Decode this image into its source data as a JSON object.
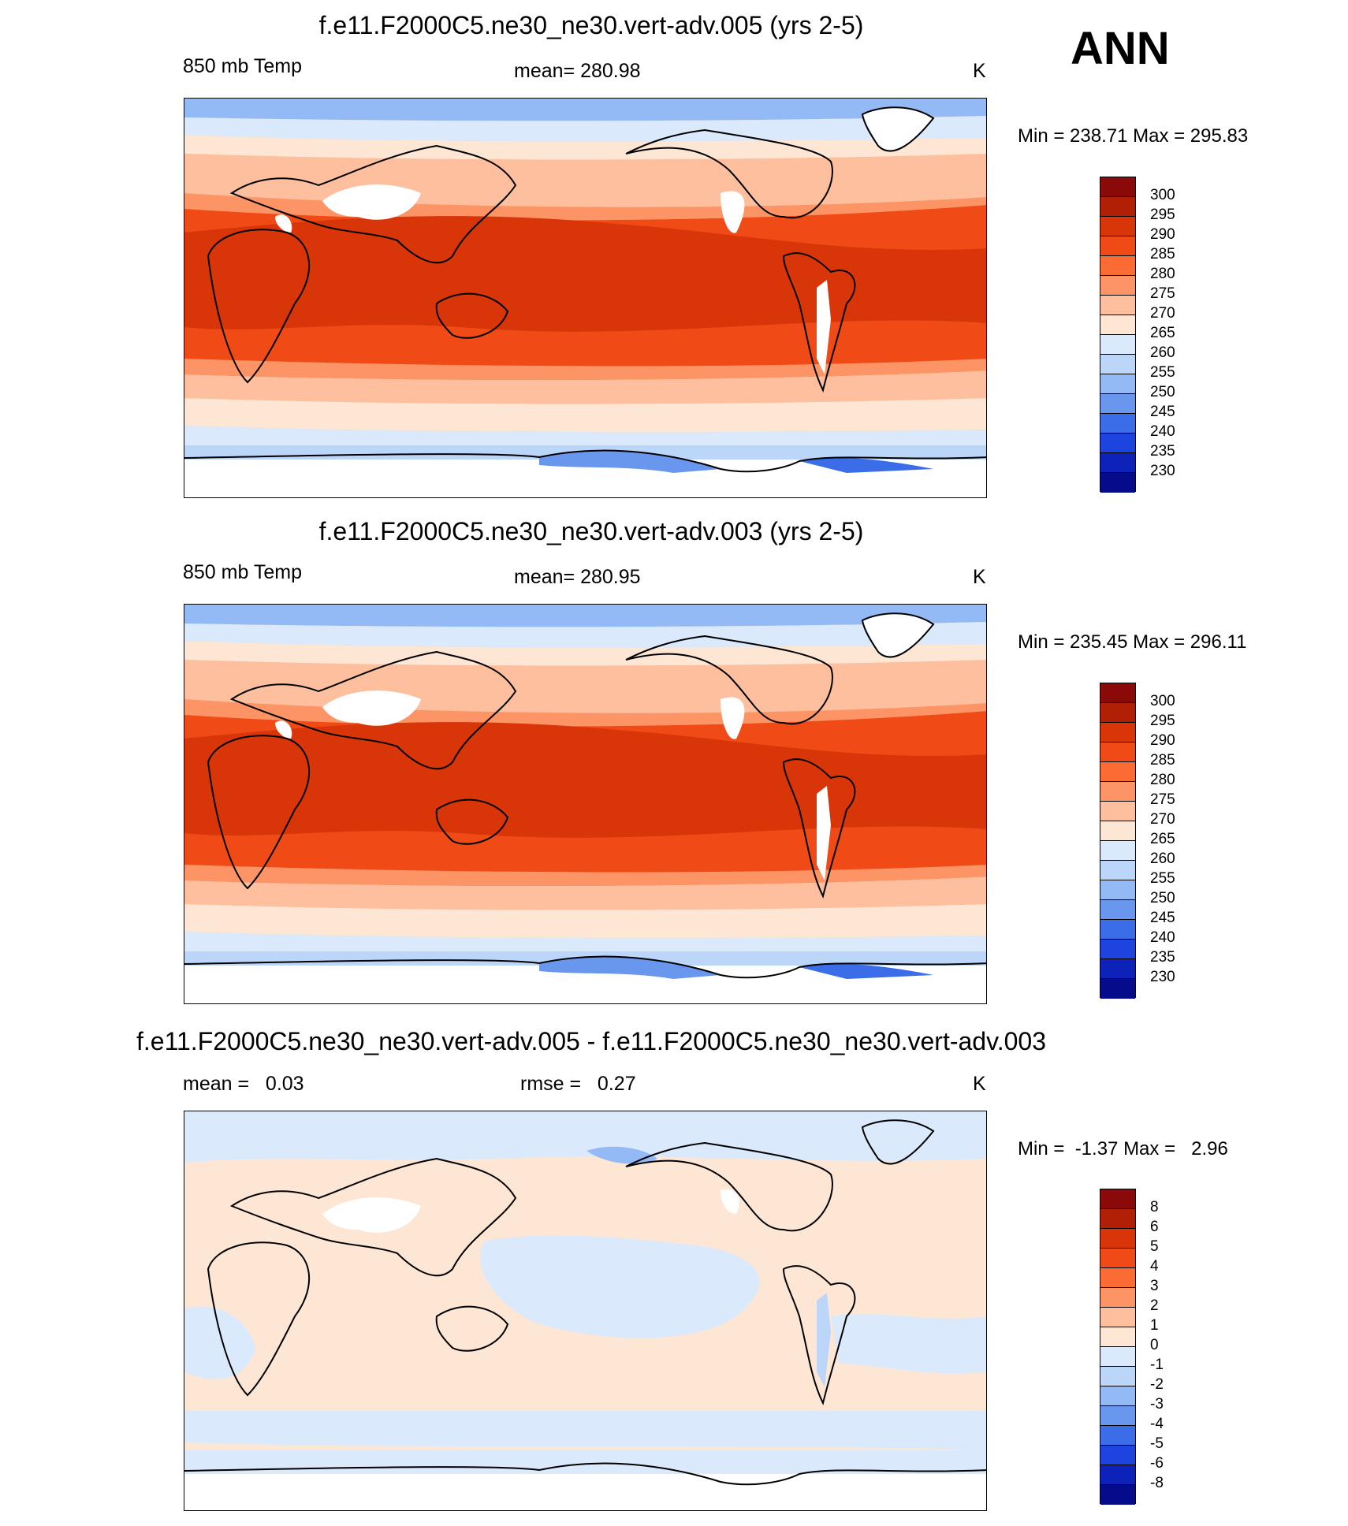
{
  "season": "ANN",
  "panels": [
    {
      "title": "f.e11.F2000C5.ne30_ne30.vert-adv.005 (yrs 2-5)",
      "left_label": "850 mb Temp",
      "center_label": "mean= 280.98",
      "right_label": "K",
      "minmax": "Min = 238.71 Max = 295.83",
      "colorbar_labels": [
        "300",
        "295",
        "290",
        "285",
        "280",
        "275",
        "270",
        "265",
        "260",
        "255",
        "250",
        "245",
        "240",
        "235",
        "230"
      ]
    },
    {
      "title": "f.e11.F2000C5.ne30_ne30.vert-adv.003 (yrs 2-5)",
      "left_label": "850 mb Temp",
      "center_label": "mean= 280.95",
      "right_label": "K",
      "minmax": "Min = 235.45 Max = 296.11",
      "colorbar_labels": [
        "300",
        "295",
        "290",
        "285",
        "280",
        "275",
        "270",
        "265",
        "260",
        "255",
        "250",
        "245",
        "240",
        "235",
        "230"
      ]
    },
    {
      "title": "f.e11.F2000C5.ne30_ne30.vert-adv.005 - f.e11.F2000C5.ne30_ne30.vert-adv.003",
      "left_label": "mean =   0.03",
      "center_label": "rmse =   0.27",
      "right_label": "K",
      "minmax": "Min =  -1.37 Max =   2.96",
      "colorbar_labels": [
        "8",
        "6",
        "5",
        "4",
        "3",
        "2",
        "1",
        "0",
        "-1",
        "-2",
        "-3",
        "-4",
        "-5",
        "-6",
        "-8"
      ]
    }
  ],
  "colorbar_colors": [
    "#8a0a0a",
    "#b21f07",
    "#d83508",
    "#f04a16",
    "#fb6b34",
    "#fc9466",
    "#fdbf9d",
    "#fee6d4",
    "#dae9fb",
    "#bcd6fa",
    "#93baf4",
    "#6a97ee",
    "#3c6de8",
    "#1d44de",
    "#0c22b8",
    "#050c8c"
  ]
}
